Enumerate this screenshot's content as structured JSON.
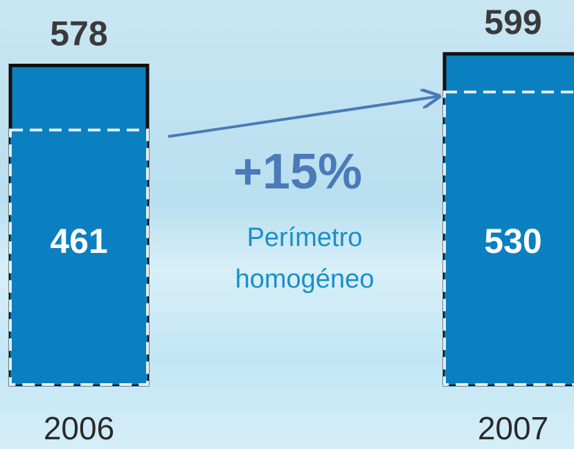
{
  "chart_data": {
    "type": "bar",
    "categories": [
      "2006",
      "2007"
    ],
    "series": [
      {
        "values": [
          578,
          599
        ],
        "color": "#0a80c0"
      },
      {
        "values": [
          461,
          530
        ],
        "color": "#0a80c0"
      }
    ],
    "ylim": [
      0,
      620
    ],
    "annotations": [
      {
        "text": "+15%"
      },
      {
        "lines": [
          "Perímetro",
          "homogéneo"
        ]
      }
    ]
  }
}
